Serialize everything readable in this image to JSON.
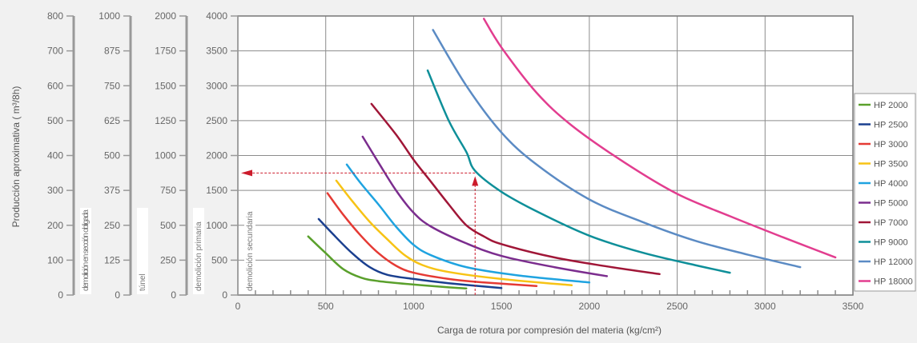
{
  "chart_data": {
    "type": "line",
    "ylabel": "Producción aproximativa ( m³/8h)",
    "xlabel": "Carga de rotura por compresión del materia (kg/cm²)",
    "xlim": [
      0,
      3500
    ],
    "x_ticks": [
      "0",
      "500",
      "1000",
      "1500",
      "2000",
      "2500",
      "3000",
      "3500"
    ],
    "y_axes": [
      {
        "label": "demolición en sección obligada",
        "ylim": [
          0,
          800
        ],
        "ticks": [
          "0",
          "100",
          "200",
          "300",
          "400",
          "500",
          "600",
          "700",
          "800"
        ]
      },
      {
        "label": "túnel",
        "ylim": [
          0,
          1000
        ],
        "ticks": [
          "0",
          "125",
          "250",
          "375",
          "500",
          "625",
          "750",
          "875",
          "1000"
        ]
      },
      {
        "label": "demolición primaria",
        "ylim": [
          0,
          2000
        ],
        "ticks": [
          "0",
          "250",
          "500",
          "750",
          "1000",
          "1250",
          "1500",
          "1750",
          "2000"
        ]
      },
      {
        "label": "demolición secundaria",
        "ylim": [
          0,
          4000
        ],
        "ticks": [
          "0",
          "500",
          "1000",
          "1500",
          "2000",
          "2500",
          "3000",
          "3500",
          "4000"
        ]
      }
    ],
    "grid": true,
    "legend_position": "right",
    "annotation": {
      "x": 1350,
      "y": 1750
    },
    "series": [
      {
        "name": "HP   2000",
        "color": "#5aa02c",
        "points": [
          [
            400,
            840
          ],
          [
            500,
            600
          ],
          [
            600,
            370
          ],
          [
            700,
            250
          ],
          [
            800,
            200
          ],
          [
            1000,
            150
          ],
          [
            1200,
            110
          ],
          [
            1300,
            95
          ]
        ]
      },
      {
        "name": "HP   2500",
        "color": "#1a3f8f",
        "points": [
          [
            460,
            1090
          ],
          [
            550,
            850
          ],
          [
            650,
            600
          ],
          [
            750,
            400
          ],
          [
            850,
            290
          ],
          [
            1000,
            230
          ],
          [
            1200,
            170
          ],
          [
            1500,
            100
          ]
        ]
      },
      {
        "name": "HP   3000",
        "color": "#e53a34",
        "points": [
          [
            510,
            1460
          ],
          [
            600,
            1150
          ],
          [
            700,
            850
          ],
          [
            800,
            600
          ],
          [
            900,
            420
          ],
          [
            1000,
            320
          ],
          [
            1200,
            230
          ],
          [
            1400,
            180
          ],
          [
            1700,
            130
          ]
        ]
      },
      {
        "name": "HP   3500",
        "color": "#f7c315",
        "points": [
          [
            560,
            1640
          ],
          [
            650,
            1350
          ],
          [
            750,
            1050
          ],
          [
            850,
            800
          ],
          [
            950,
            570
          ],
          [
            1050,
            430
          ],
          [
            1200,
            330
          ],
          [
            1500,
            230
          ],
          [
            1900,
            140
          ]
        ]
      },
      {
        "name": "HP   4000",
        "color": "#1fa3e0",
        "points": [
          [
            620,
            1870
          ],
          [
            700,
            1600
          ],
          [
            800,
            1300
          ],
          [
            900,
            980
          ],
          [
            1000,
            720
          ],
          [
            1100,
            570
          ],
          [
            1300,
            400
          ],
          [
            1600,
            280
          ],
          [
            2000,
            180
          ]
        ]
      },
      {
        "name": "HP   5000",
        "color": "#7b2d8e",
        "points": [
          [
            710,
            2270
          ],
          [
            800,
            1900
          ],
          [
            900,
            1500
          ],
          [
            1000,
            1180
          ],
          [
            1100,
            980
          ],
          [
            1300,
            740
          ],
          [
            1500,
            560
          ],
          [
            1800,
            400
          ],
          [
            2100,
            270
          ]
        ]
      },
      {
        "name": "HP   7000",
        "color": "#a01637",
        "points": [
          [
            760,
            2740
          ],
          [
            900,
            2300
          ],
          [
            1000,
            1940
          ],
          [
            1100,
            1620
          ],
          [
            1200,
            1300
          ],
          [
            1300,
            1000
          ],
          [
            1400,
            840
          ],
          [
            1500,
            730
          ],
          [
            1800,
            540
          ],
          [
            2100,
            410
          ],
          [
            2400,
            300
          ]
        ]
      },
      {
        "name": "HP   9000",
        "color": "#0e8f99",
        "points": [
          [
            1080,
            3220
          ],
          [
            1200,
            2500
          ],
          [
            1300,
            2050
          ],
          [
            1350,
            1780
          ],
          [
            1500,
            1480
          ],
          [
            1700,
            1200
          ],
          [
            2000,
            850
          ],
          [
            2300,
            610
          ],
          [
            2600,
            430
          ],
          [
            2800,
            320
          ]
        ]
      },
      {
        "name": "HP 12000",
        "color": "#5b8bc4",
        "points": [
          [
            1110,
            3800
          ],
          [
            1300,
            3000
          ],
          [
            1500,
            2330
          ],
          [
            1700,
            1870
          ],
          [
            2000,
            1370
          ],
          [
            2300,
            1050
          ],
          [
            2600,
            780
          ],
          [
            2900,
            580
          ],
          [
            3200,
            400
          ]
        ]
      },
      {
        "name": "HP 18000",
        "color": "#e23d8f",
        "points": [
          [
            1400,
            3960
          ],
          [
            1500,
            3550
          ],
          [
            1700,
            2900
          ],
          [
            1900,
            2430
          ],
          [
            2200,
            1900
          ],
          [
            2500,
            1450
          ],
          [
            2800,
            1130
          ],
          [
            3100,
            830
          ],
          [
            3400,
            540
          ]
        ]
      }
    ]
  }
}
